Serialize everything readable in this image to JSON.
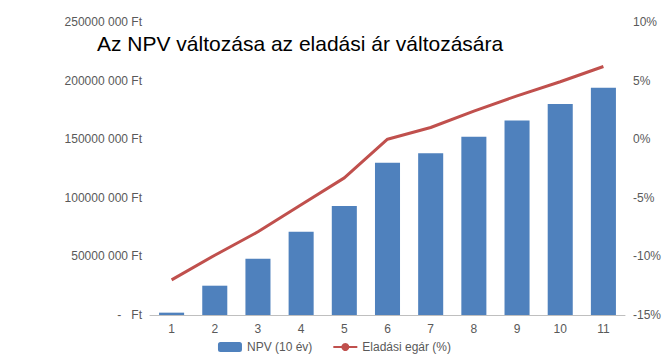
{
  "chart_data": {
    "type": "bar",
    "title": "Az NPV változása az eladási ár változására",
    "categories": [
      "1",
      "2",
      "3",
      "4",
      "5",
      "6",
      "7",
      "8",
      "9",
      "10",
      "11"
    ],
    "series": [
      {
        "name": "NPV (10 év)",
        "type": "bar",
        "color": "#4f81bd",
        "values": [
          2000000,
          25000000,
          48000000,
          71000000,
          93000000,
          130000000,
          138000000,
          152000000,
          166000000,
          180000000,
          194000000
        ]
      },
      {
        "name": "Eladási egár (%)",
        "type": "line",
        "axis": "y2",
        "color": "#c0504d",
        "values": [
          -12,
          -9.9,
          -7.9,
          -5.6,
          -3.3,
          0,
          1,
          2.4,
          3.7,
          4.9,
          6.2
        ]
      }
    ],
    "ylim": [
      0,
      250000000
    ],
    "yticks": [
      {
        "value": 0,
        "label": "-   Ft"
      },
      {
        "value": 50000000,
        "label": "50000 000 Ft"
      },
      {
        "value": 100000000,
        "label": "100000 000 Ft"
      },
      {
        "value": 150000000,
        "label": "150000 000 Ft"
      },
      {
        "value": 200000000,
        "label": "200000 000 Ft"
      },
      {
        "value": 250000000,
        "label": "250000 000 Ft"
      }
    ],
    "y2lim": [
      -15,
      10
    ],
    "y2ticks": [
      {
        "value": -15,
        "label": "-15%"
      },
      {
        "value": -10,
        "label": "-10%"
      },
      {
        "value": -5,
        "label": "-5%"
      },
      {
        "value": 0,
        "label": "0%"
      },
      {
        "value": 5,
        "label": "5%"
      },
      {
        "value": 10,
        "label": "10%"
      }
    ],
    "grid": false,
    "legend": "bottom"
  }
}
